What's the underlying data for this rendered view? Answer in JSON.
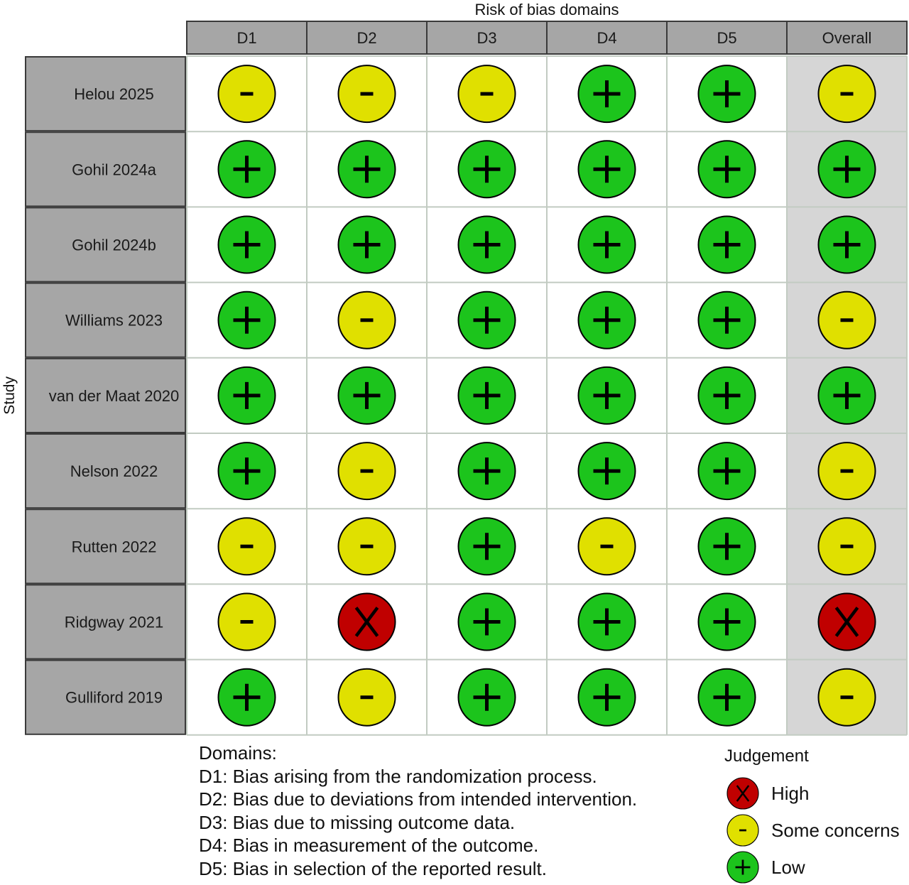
{
  "chart_data": {
    "type": "table",
    "title": "Risk of bias domains",
    "row_axis_label": "Study",
    "columns": [
      "D1",
      "D2",
      "D3",
      "D4",
      "D5",
      "Overall"
    ],
    "studies": [
      {
        "study": "Helou 2025",
        "judgements": [
          "-",
          "-",
          "-",
          "+",
          "+",
          "-"
        ]
      },
      {
        "study": "Gohil 2024a",
        "judgements": [
          "+",
          "+",
          "+",
          "+",
          "+",
          "+"
        ]
      },
      {
        "study": "Gohil 2024b",
        "judgements": [
          "+",
          "+",
          "+",
          "+",
          "+",
          "+"
        ]
      },
      {
        "study": "Williams 2023",
        "judgements": [
          "+",
          "-",
          "+",
          "+",
          "+",
          "-"
        ]
      },
      {
        "study": "van der Maat 2020",
        "judgements": [
          "+",
          "+",
          "+",
          "+",
          "+",
          "+"
        ]
      },
      {
        "study": "Nelson 2022",
        "judgements": [
          "+",
          "-",
          "+",
          "+",
          "+",
          "-"
        ]
      },
      {
        "study": "Rutten 2022",
        "judgements": [
          "-",
          "-",
          "+",
          "-",
          "+",
          "-"
        ]
      },
      {
        "study": "Ridgway 2021",
        "judgements": [
          "-",
          "X",
          "+",
          "+",
          "+",
          "X"
        ]
      },
      {
        "study": "Gulliford 2019",
        "judgements": [
          "+",
          "-",
          "+",
          "+",
          "+",
          "-"
        ]
      }
    ],
    "judgement_colors": {
      "X": "#c00000",
      "-": "#e0e000",
      "+": "#1cc41c"
    }
  },
  "domains_legend": {
    "title": "Domains:",
    "items": [
      "D1: Bias arising from the randomization process.",
      "D2: Bias due to deviations from intended intervention.",
      "D3: Bias due to missing outcome data.",
      "D4: Bias in measurement of the outcome.",
      "D5: Bias in selection of the reported result."
    ]
  },
  "judgement_legend": {
    "title": "Judgement",
    "items": [
      {
        "symbol": "X",
        "label": "High"
      },
      {
        "symbol": "-",
        "label": "Some concerns"
      },
      {
        "symbol": "+",
        "label": "Low"
      }
    ]
  }
}
